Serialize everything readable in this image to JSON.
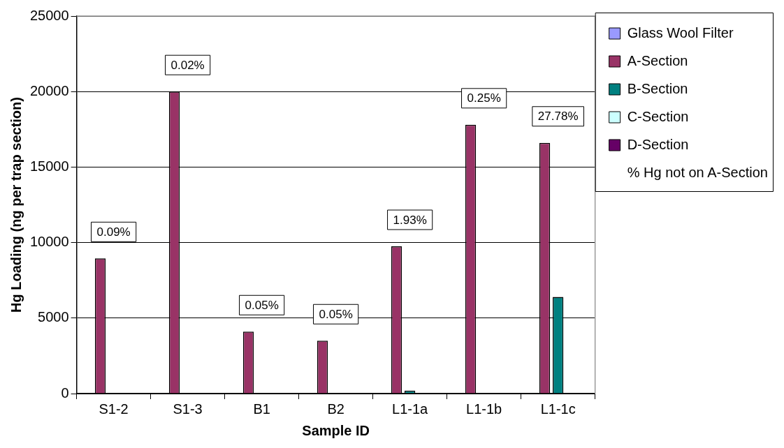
{
  "chart_data": {
    "type": "bar",
    "xlabel": "Sample ID",
    "ylabel": "Hg Loading (ng per trap section)",
    "categories": [
      "S1-2",
      "S1-3",
      "B1",
      "B2",
      "L1-1a",
      "L1-1b",
      "L1-1c"
    ],
    "series": [
      {
        "name": "Glass Wool Filter",
        "color": "#9999ff",
        "values": [
          0,
          0,
          0,
          0,
          0,
          0,
          0
        ]
      },
      {
        "name": "A-Section",
        "color": "#993366",
        "values": [
          8950,
          20000,
          4100,
          3500,
          9750,
          17800,
          16600
        ]
      },
      {
        "name": "B-Section",
        "color": "#008080",
        "values": [
          0,
          0,
          0,
          0,
          200,
          0,
          6400
        ]
      },
      {
        "name": "C-Section",
        "color": "#ccffff",
        "values": [
          0,
          0,
          0,
          0,
          0,
          0,
          0
        ]
      },
      {
        "name": "D-Section",
        "color": "#660066",
        "values": [
          0,
          0,
          0,
          0,
          0,
          0,
          0
        ]
      },
      {
        "name": "% Hg not on A-Section",
        "type": "scatter",
        "marker": "none",
        "values": [
          null,
          null,
          null,
          null,
          null,
          null,
          null
        ]
      }
    ],
    "annotations": [
      "0.09%",
      "0.02%",
      "0.05%",
      "0.05%",
      "1.93%",
      "0.25%",
      "27.78%"
    ],
    "ylim": [
      0,
      25000
    ],
    "yticks": [
      0,
      5000,
      10000,
      15000,
      20000,
      25000
    ],
    "grid": "y",
    "legend": "right"
  }
}
